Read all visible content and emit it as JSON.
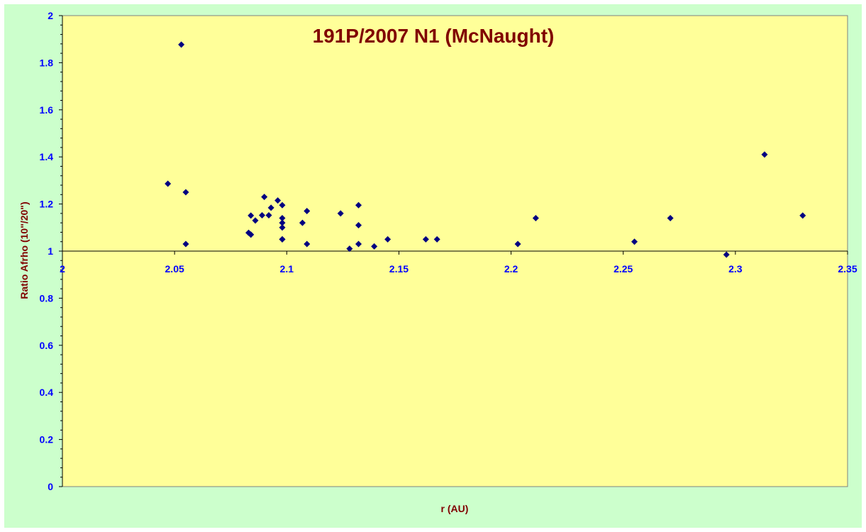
{
  "chart_data": {
    "type": "scatter",
    "title": "191P/2007 N1 (McNaught)",
    "xlabel": "r (AU)",
    "ylabel": "Ratio Afrho (10\"/20\")",
    "xlim": [
      2,
      2.35
    ],
    "ylim": [
      0,
      2
    ],
    "x_ticks": [
      "2",
      "2.05",
      "2.1",
      "2.15",
      "2.2",
      "2.25",
      "2.3",
      "2.35"
    ],
    "y_ticks": [
      "0",
      "0.2",
      "0.4",
      "0.6",
      "0.8",
      "1",
      "1.2",
      "1.4",
      "1.6",
      "1.8",
      "2"
    ],
    "x_axis_crosses_at": 1,
    "grid": false,
    "legend": "none",
    "colors": {
      "plot_area": "#ffff99",
      "chart_area": "#ccffcc",
      "marker": "#000080",
      "tick_labels": "#0000ff",
      "titles": "#800000"
    },
    "series": [
      {
        "x": [
          2.047,
          2.053,
          2.055,
          2.055,
          2.083,
          2.084,
          2.084,
          2.084,
          2.086,
          2.089,
          2.09,
          2.092,
          2.093,
          2.096,
          2.098,
          2.098,
          2.098,
          2.098,
          2.098,
          2.098,
          2.107,
          2.109,
          2.109,
          2.124,
          2.128,
          2.132,
          2.132,
          2.132,
          2.139,
          2.145,
          2.162,
          2.167,
          2.203,
          2.211,
          2.255,
          2.271,
          2.296,
          2.313,
          2.33
        ],
        "y": [
          1.286,
          1.877,
          1.25,
          1.03,
          1.078,
          1.07,
          1.151,
          1.07,
          1.13,
          1.152,
          1.23,
          1.152,
          1.184,
          1.215,
          1.195,
          1.14,
          1.12,
          1.1,
          1.05,
          1.05,
          1.12,
          1.17,
          1.03,
          1.16,
          1.01,
          1.195,
          1.11,
          1.03,
          1.02,
          1.05,
          1.05,
          1.05,
          1.03,
          1.14,
          1.04,
          1.14,
          0.985,
          1.41,
          1.151
        ]
      }
    ]
  }
}
